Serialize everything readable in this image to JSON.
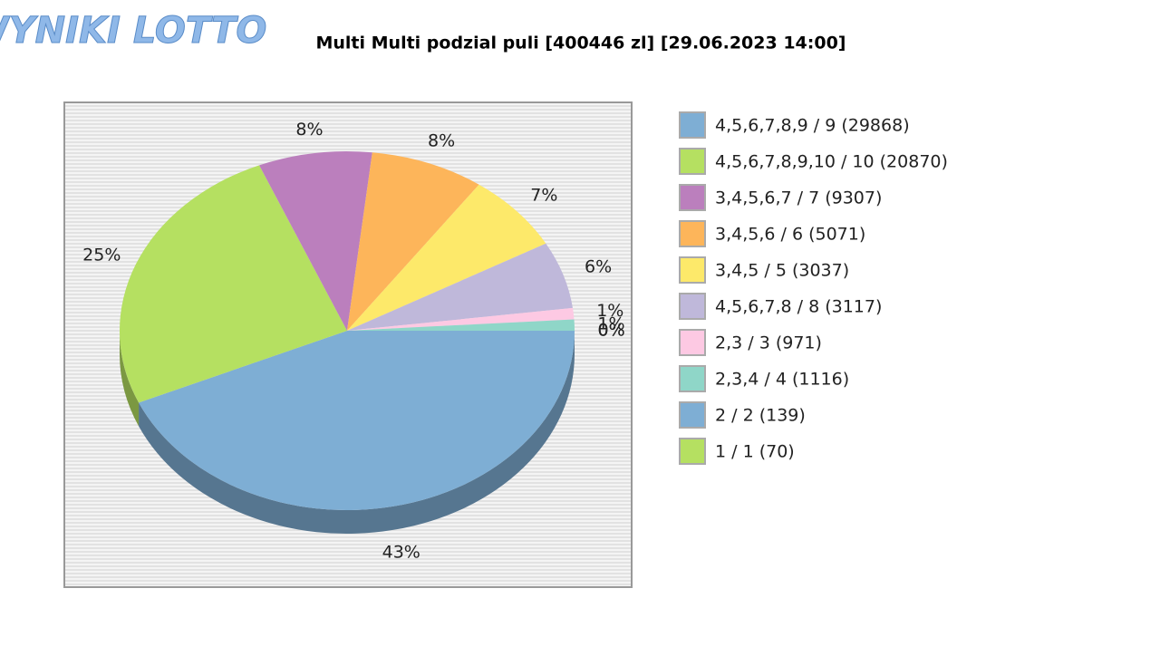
{
  "logo": "WYNIKI LOTTO",
  "chart_data": {
    "type": "pie",
    "title": "Multi Multi podzial puli [400446 zl] [29.06.2023 14:00]",
    "categories": [
      "4,5,6,7,8,9 / 9 (29868)",
      "4,5,6,7,8,9,10 / 10 (20870)",
      "3,4,5,6,7 / 7 (9307)",
      "3,4,5,6 / 6 (5071)",
      "3,4,5 / 5 (3037)",
      "4,5,6,7,8 / 8 (3117)",
      "2,3 / 3 (971)",
      "2,3,4 / 4 (1116)",
      "2 / 2 (139)",
      "1 / 1 (70)"
    ],
    "values": [
      43,
      25,
      8,
      8,
      7,
      6,
      1,
      1,
      0,
      0
    ],
    "value_labels": [
      "43%",
      "25%",
      "8%",
      "8%",
      "7%",
      "6%",
      "1%",
      "1%",
      "0%",
      "0%"
    ],
    "colors": [
      "#7eaed4",
      "#b5e061",
      "#bb7fbd",
      "#fdb55a",
      "#fde96a",
      "#bfb8da",
      "#fdc9e3",
      "#8fd6c8",
      "#7eaed4",
      "#b5e061"
    ],
    "legend": "right"
  }
}
